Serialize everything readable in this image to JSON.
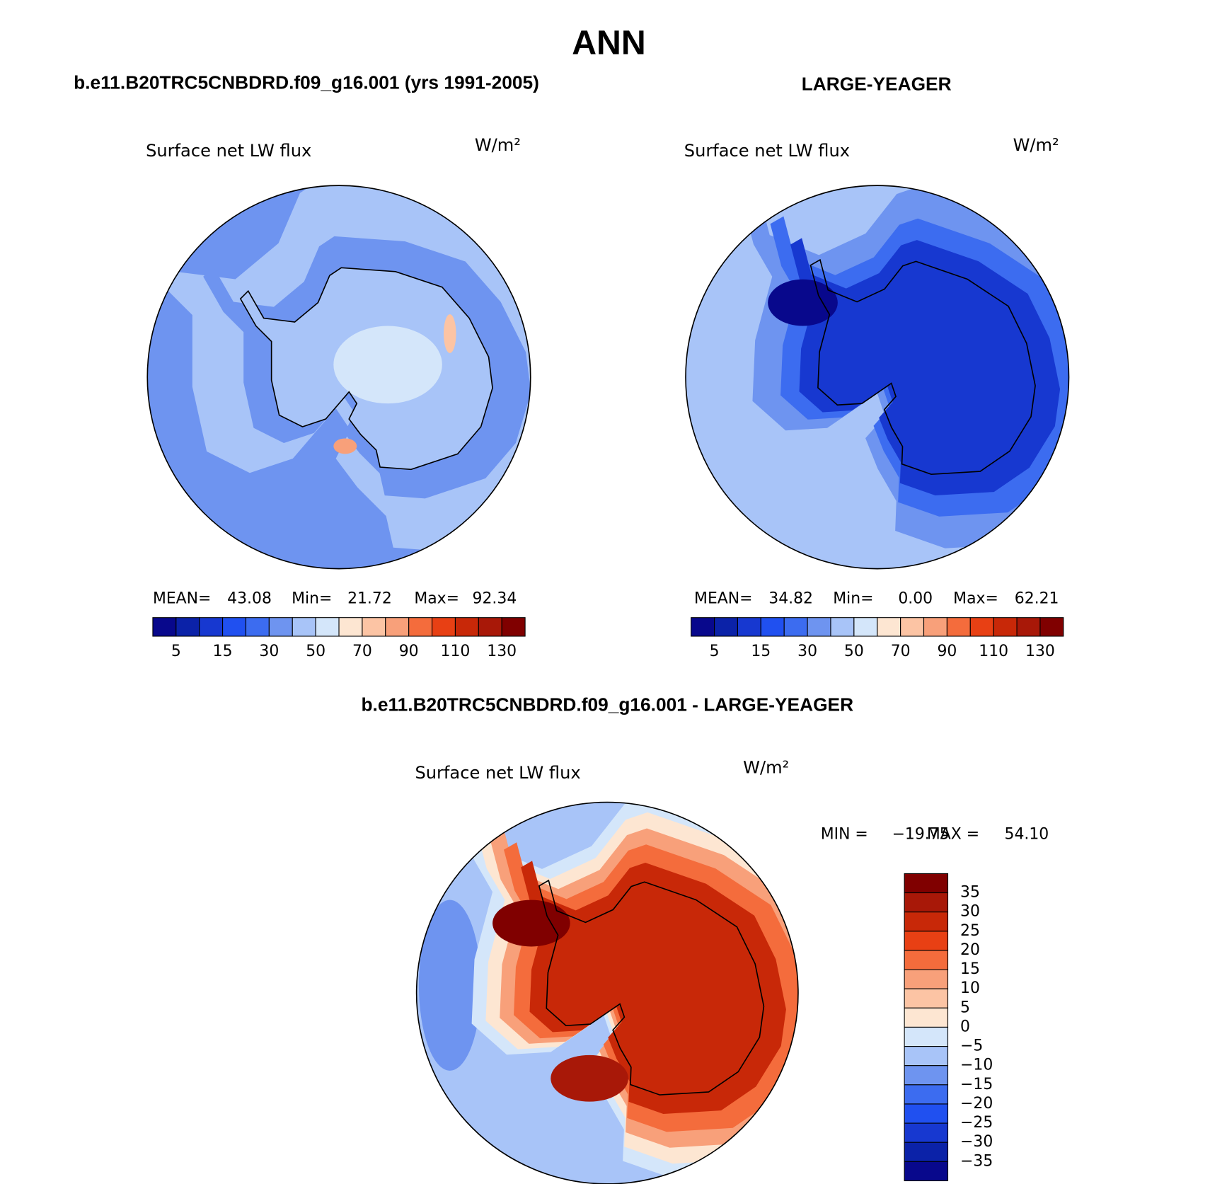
{
  "title": "ANN",
  "difference_title": "b.e11.B20TRC5CNBDRD.f09_g16.001 - LARGE-YEAGER",
  "panels": [
    {
      "title": "b.e11.B20TRC5CNBDRD.f09_g16.001 (yrs 1991-2005)",
      "variable": "Surface net LW flux",
      "units": "W/m²",
      "stats": [
        {
          "label": "MEAN=",
          "value": "43.08"
        },
        {
          "label": "Min=",
          "value": "21.72"
        },
        {
          "label": "Max=",
          "value": "92.34"
        }
      ]
    },
    {
      "title": "LARGE-YEAGER",
      "variable": "Surface net LW flux",
      "units": "W/m²",
      "stats": [
        {
          "label": "MEAN=",
          "value": "34.82"
        },
        {
          "label": "Min=",
          "value": "0.00"
        },
        {
          "label": "Max=",
          "value": "62.21"
        }
      ]
    },
    {
      "variable": "Surface net LW flux",
      "units": "W/m²",
      "stats": [
        {
          "label": "MIN =",
          "value": "−19.75"
        },
        {
          "label": "MAX =",
          "value": "54.10"
        }
      ]
    }
  ],
  "colorbar": {
    "ticks": [
      5,
      15,
      30,
      50,
      70,
      90,
      110,
      130
    ],
    "colors": [
      "#08088c",
      "#0b22a8",
      "#1738d0",
      "#2050f0",
      "#3c6cf0",
      "#6e94f0",
      "#a8c4f8",
      "#d4e6fa",
      "#fde6d2",
      "#fcc4a4",
      "#f8a07a",
      "#f46c3c",
      "#e84014",
      "#c82808",
      "#a81808",
      "#800000"
    ]
  },
  "difference_colorbar": {
    "ticks": [
      35,
      30,
      25,
      20,
      15,
      10,
      5,
      0,
      {
        "value": -5,
        "label": "−5"
      },
      {
        "value": -10,
        "label": "−10"
      },
      {
        "value": -15,
        "label": "−15"
      },
      {
        "value": -20,
        "label": "−20"
      },
      {
        "value": -25,
        "label": "−25"
      },
      {
        "value": -30,
        "label": "−30"
      },
      {
        "value": -35,
        "label": "−35"
      }
    ],
    "colors": [
      "#800000",
      "#a81808",
      "#c82808",
      "#e84014",
      "#f46c3c",
      "#f8a07a",
      "#fcc4a4",
      "#fde6d2",
      "#d4e6fa",
      "#a8c4f8",
      "#6e94f0",
      "#3c6cf0",
      "#2050f0",
      "#1738d0",
      "#0b22a8",
      "#08088c"
    ]
  }
}
